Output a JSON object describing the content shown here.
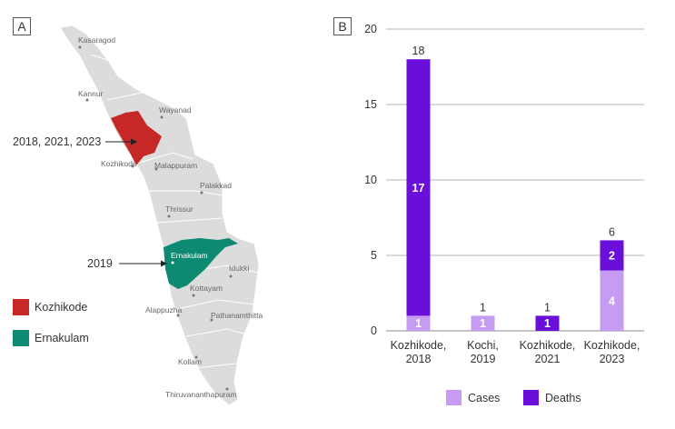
{
  "panels": {
    "a": "A",
    "b": "B"
  },
  "map": {
    "districts": [
      "Kasaragod",
      "Kannur",
      "Wayanad",
      "Kozhikode",
      "Malappuram",
      "Palakkad",
      "Thrissur",
      "Ernakulam",
      "Idukki",
      "Kottayam",
      "Alappuzha",
      "Pathanamthitta",
      "Kollam",
      "Thiruvananthapuram"
    ],
    "highlight": [
      {
        "name": "Kozhikode",
        "color": "#c62828",
        "years": "2018, 2021, 2023"
      },
      {
        "name": "Ernakulam",
        "color": "#0f8a72",
        "years": "2019"
      }
    ],
    "legend": [
      {
        "label": "Kozhikode",
        "color": "#c62828"
      },
      {
        "label": "Ernakulam",
        "color": "#0f8a72"
      }
    ],
    "base_color": "#dcdcdc"
  },
  "chart_data": {
    "type": "bar",
    "stacked": true,
    "categories": [
      [
        "Kozhikode,",
        "2018"
      ],
      [
        "Kochi,",
        "2019"
      ],
      [
        "Kozhikode,",
        "2021"
      ],
      [
        "Kozhikode,",
        "2023"
      ]
    ],
    "series": [
      {
        "name": "Cases",
        "color": "#c59cf2",
        "values": [
          1,
          1,
          0,
          4
        ]
      },
      {
        "name": "Deaths",
        "color": "#6a0fd9",
        "values": [
          17,
          0,
          1,
          2
        ]
      }
    ],
    "totals": [
      18,
      1,
      1,
      6
    ],
    "yticks": [
      0,
      5,
      10,
      15,
      20
    ],
    "ylim": [
      0,
      20
    ],
    "grid": true,
    "legend_position": "bottom"
  }
}
